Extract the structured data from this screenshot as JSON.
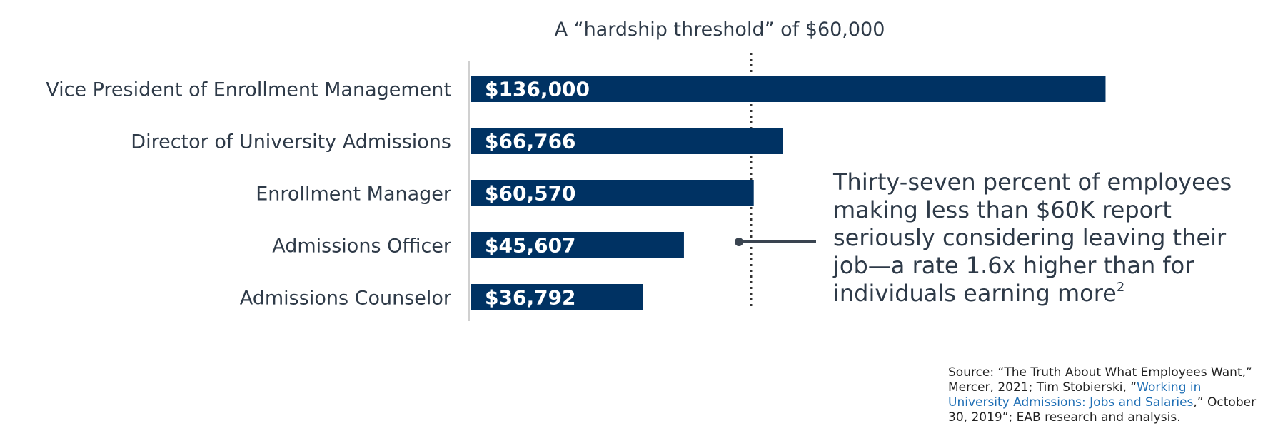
{
  "chart_data": {
    "type": "bar",
    "orientation": "horizontal",
    "categories": [
      "Vice President of Enrollment Management",
      "Director of University Admissions",
      "Enrollment Manager",
      "Admissions Officer",
      "Admissions Counselor"
    ],
    "values": [
      136000,
      66766,
      60570,
      45607,
      36792
    ],
    "value_labels": [
      "$136,000",
      "$66,766",
      "$60,570",
      "$45,607",
      "$36,792"
    ],
    "xlim": [
      0,
      152000
    ],
    "bar_color": "#003263",
    "threshold": {
      "value": 60000,
      "label": "A “hardship threshold” of $60,000",
      "style": "dotted"
    },
    "grid": false
  },
  "callout": {
    "text": "Thirty-seven percent of employees making less than $60K report seriously considering leaving their job—a rate 1.6x higher than for individuals earning more",
    "footnote": "2"
  },
  "source": {
    "prefix": "Source: “The Truth About What Employees Want,” Mercer, 2021; Tim Stobierski, “",
    "link_text": "Working in University Admissions: Jobs and Salaries",
    "suffix": ",” October 30, 2019”; EAB research and analysis."
  },
  "colors": {
    "bar": "#003263",
    "text": "#2e3a48",
    "link": "#1f6fb5",
    "axis": "#d0d0d0",
    "callout_line": "#3a4450"
  }
}
